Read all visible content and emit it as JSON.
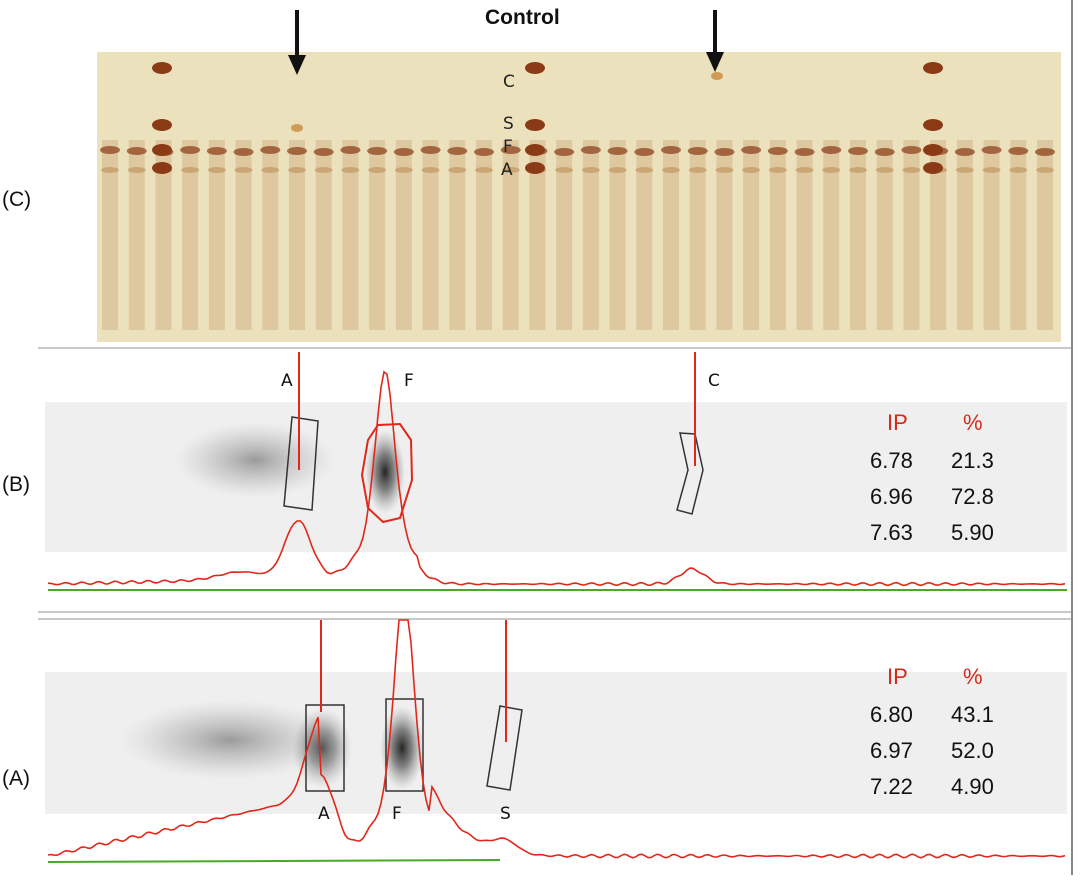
{
  "figure": {
    "control_label": "Control",
    "panel_labels": {
      "c": "(C)",
      "b": "(B)",
      "a": "(A)"
    }
  },
  "gel": {
    "band_letters": [
      "C",
      "S",
      "F",
      "A"
    ],
    "band_colors": {
      "background": "#ece1bd",
      "lane_smear": "#b98a52",
      "band": "#8a3b16"
    }
  },
  "panel_b": {
    "peak_labels": [
      "A",
      "F",
      "C"
    ],
    "table": {
      "headers": [
        "IP",
        "%"
      ],
      "rows": [
        [
          "6.78",
          "21.3"
        ],
        [
          "6.96",
          "72.8"
        ],
        [
          "7.63",
          "5.90"
        ]
      ]
    }
  },
  "panel_a": {
    "peak_labels": [
      "A",
      "F",
      "S"
    ],
    "table": {
      "headers": [
        "IP",
        "%"
      ],
      "rows": [
        [
          "6.80",
          "43.1"
        ],
        [
          "6.97",
          "52.0"
        ],
        [
          "7.22",
          "4.90"
        ]
      ]
    }
  },
  "colors": {
    "trace": "#e0281a",
    "baseline": "#4aa82a",
    "header_text": "#d42a1c",
    "box": "#333333"
  }
}
